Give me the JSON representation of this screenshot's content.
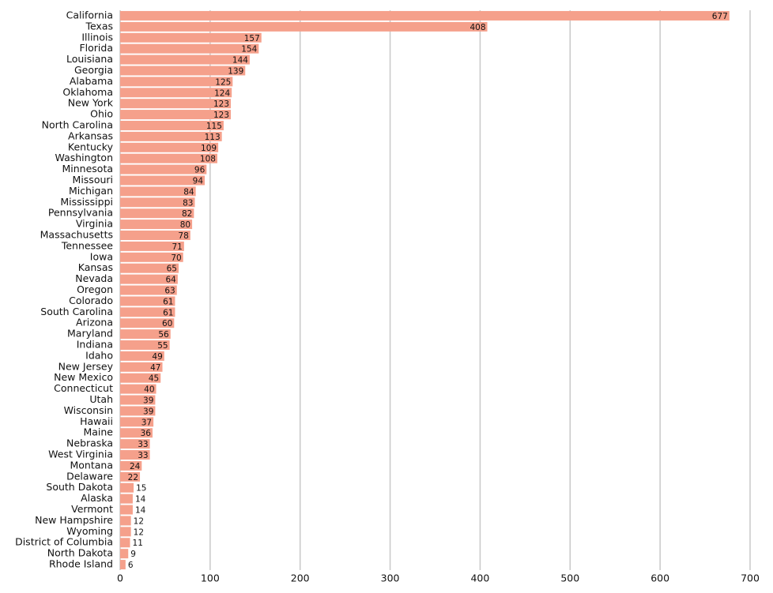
{
  "chart_data": {
    "type": "bar",
    "orientation": "horizontal",
    "color": "#f5a08b",
    "grid": true,
    "categories": [
      "California",
      "Texas",
      "Illinois",
      "Florida",
      "Louisiana",
      "Georgia",
      "Alabama",
      "Oklahoma",
      "New York",
      "Ohio",
      "North Carolina",
      "Arkansas",
      "Kentucky",
      "Washington",
      "Minnesota",
      "Missouri",
      "Michigan",
      "Mississippi",
      "Pennsylvania",
      "Virginia",
      "Massachusetts",
      "Tennessee",
      "Iowa",
      "Kansas",
      "Nevada",
      "Oregon",
      "Colorado",
      "South Carolina",
      "Arizona",
      "Maryland",
      "Indiana",
      "Idaho",
      "New Jersey",
      "New Mexico",
      "Connecticut",
      "Utah",
      "Wisconsin",
      "Hawaii",
      "Maine",
      "Nebraska",
      "West Virginia",
      "Montana",
      "Delaware",
      "South Dakota",
      "Alaska",
      "Vermont",
      "New Hampshire",
      "Wyoming",
      "District of Columbia",
      "North Dakota",
      "Rhode Island"
    ],
    "values": [
      677,
      408,
      157,
      154,
      144,
      139,
      125,
      124,
      123,
      123,
      115,
      113,
      109,
      108,
      96,
      94,
      84,
      83,
      82,
      80,
      78,
      71,
      70,
      65,
      64,
      63,
      61,
      61,
      60,
      56,
      55,
      49,
      47,
      45,
      40,
      39,
      39,
      37,
      36,
      33,
      33,
      24,
      22,
      15,
      14,
      14,
      12,
      12,
      11,
      9,
      6
    ],
    "xlim": [
      0,
      700
    ],
    "xticks": [
      0,
      100,
      200,
      300,
      400,
      500,
      600,
      700
    ]
  }
}
